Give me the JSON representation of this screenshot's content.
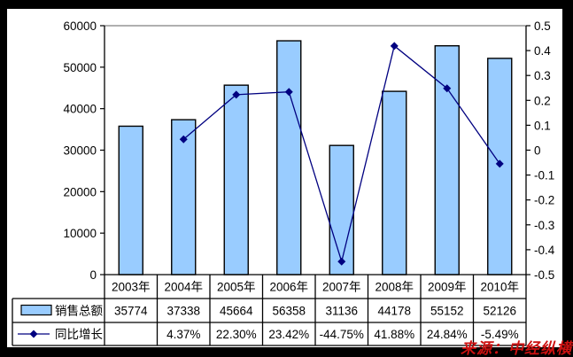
{
  "source_label": "来源：中经纵横",
  "colors": {
    "frame": "#000000",
    "background": "#FFFFFF",
    "bar_fill": "#99CCFF",
    "bar_border": "#000000",
    "line": "#000080",
    "marker": "#000080",
    "plot_border_top": "#808080",
    "axis": "#000000",
    "grid_table": "#000000",
    "text": "#000000",
    "source_text": "#CC1111"
  },
  "chart_data": {
    "type": "bar+line combo with data table",
    "categories": [
      "2003年",
      "2004年",
      "2005年",
      "2006年",
      "2007年",
      "2008年",
      "2009年",
      "2010年"
    ],
    "series": [
      {
        "name": "销售总额",
        "type": "bar",
        "axis": "left",
        "values": [
          35774,
          37338,
          45664,
          56358,
          31136,
          44178,
          55152,
          52126
        ],
        "table_labels": [
          "35774",
          "37338",
          "45664",
          "56358",
          "31136",
          "44178",
          "55152",
          "52126"
        ]
      },
      {
        "name": "同比增长",
        "type": "line",
        "axis": "right",
        "values": [
          null,
          0.0437,
          0.223,
          0.2342,
          -0.4475,
          0.4188,
          0.2484,
          -0.0549
        ],
        "table_labels": [
          "",
          "4.37%",
          "22.30%",
          "23.42%",
          "-44.75%",
          "41.88%",
          "24.84%",
          "-5.49%"
        ]
      }
    ],
    "left_axis": {
      "min": 0,
      "max": 60000,
      "step": 10000,
      "tick_labels": [
        "60000",
        "50000",
        "40000",
        "30000",
        "20000",
        "10000",
        "0"
      ]
    },
    "right_axis": {
      "min": -0.5,
      "max": 0.5,
      "step": 0.1,
      "tick_labels": [
        "0.5",
        "0.4",
        "0.3",
        "0.2",
        "0.1",
        "0",
        "-0.1",
        "-0.2",
        "-0.3",
        "-0.4",
        "-0.5"
      ]
    },
    "grid": false,
    "legend_position": "table-left-keys",
    "title": ""
  }
}
